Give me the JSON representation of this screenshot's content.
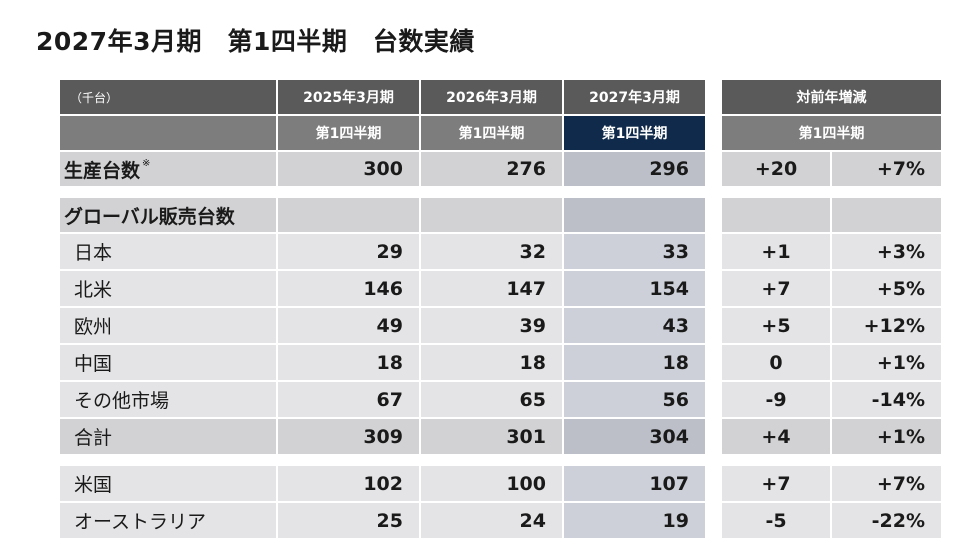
{
  "title": "2027年3月期　第1四半期　台数実績",
  "header": {
    "unit": "（千台）",
    "years": [
      "2025年3月期",
      "2026年3月期",
      "2027年3月期"
    ],
    "change": "対前年増減",
    "quarter": "第1四半期"
  },
  "production": {
    "label": "生産台数",
    "note": "※",
    "values": [
      "300",
      "276",
      "296"
    ],
    "diff": "+20",
    "pct": "+7%"
  },
  "global_sales_label": "グローバル販売台数",
  "regions": [
    {
      "label": "日本",
      "values": [
        "29",
        "32",
        "33"
      ],
      "diff": "+1",
      "pct": "+3%"
    },
    {
      "label": "北米",
      "values": [
        "146",
        "147",
        "154"
      ],
      "diff": "+7",
      "pct": "+5%"
    },
    {
      "label": "欧州",
      "values": [
        "49",
        "39",
        "43"
      ],
      "diff": "+5",
      "pct": "+12%"
    },
    {
      "label": "中国",
      "values": [
        "18",
        "18",
        "18"
      ],
      "diff": "0",
      "pct": "+1%"
    },
    {
      "label": "その他市場",
      "values": [
        "67",
        "65",
        "56"
      ],
      "diff": "-9",
      "pct": "-14%"
    }
  ],
  "total": {
    "label": "合計",
    "values": [
      "309",
      "301",
      "304"
    ],
    "diff": "+4",
    "pct": "+1%"
  },
  "extra": [
    {
      "label": "米国",
      "values": [
        "102",
        "100",
        "107"
      ],
      "diff": "+7",
      "pct": "+7%"
    },
    {
      "label": "オーストラリア",
      "values": [
        "25",
        "24",
        "19"
      ],
      "diff": "-5",
      "pct": "-22%"
    }
  ]
}
